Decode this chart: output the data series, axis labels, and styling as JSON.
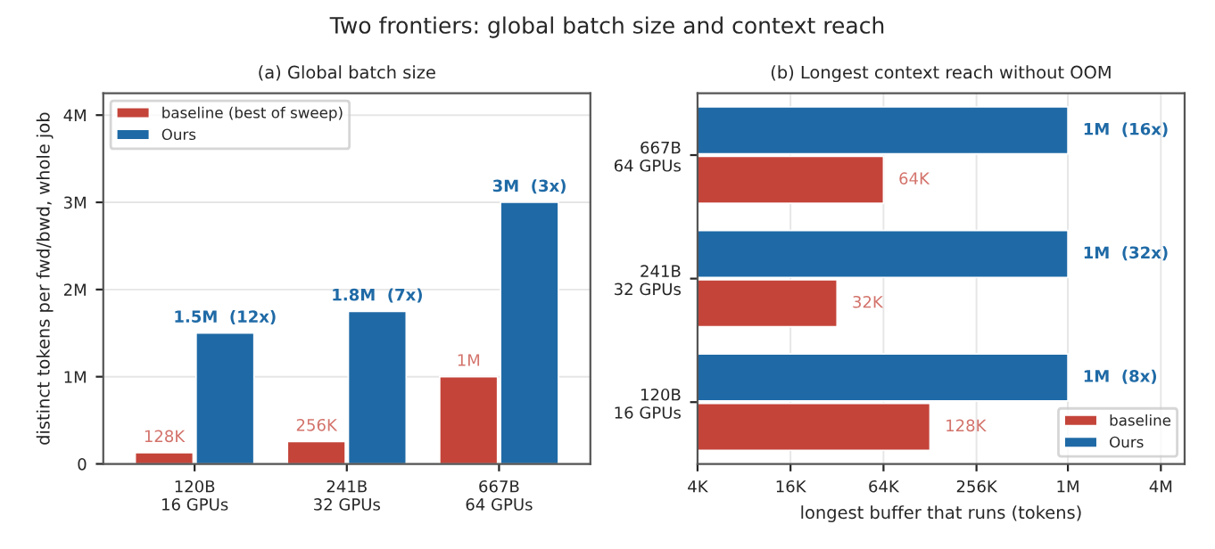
{
  "chart_data": [
    {
      "type": "bar",
      "title": "(a) Global batch size",
      "ylabel": "distinct tokens per fwd/bwd, whole job",
      "annotations": [
        "Two frontiers: global batch size and context reach"
      ],
      "categories": [
        "120B\n16 GPUs",
        "241B\n32 GPUs",
        "667B\n64 GPUs"
      ],
      "series": [
        {
          "name": "baseline (best of sweep)",
          "color": "#c4443a",
          "values": [
            128000,
            256000,
            1000000
          ],
          "value_labels": [
            "128K",
            "256K",
            "1M"
          ]
        },
        {
          "name": "Ours",
          "color": "#1f6aa6",
          "values": [
            1500000,
            1750000,
            3000000
          ],
          "value_labels": [
            "1.5M  (12x)",
            "1.8M  (7x)",
            "3M  (3x)"
          ]
        }
      ],
      "ylim": [
        0,
        4250000
      ],
      "yticks": [
        0,
        {
          "value": 1000000,
          "label": "1M"
        },
        {
          "value": 2000000,
          "label": "2M"
        },
        {
          "value": 3000000,
          "label": "3M"
        },
        {
          "value": 4000000,
          "label": "4M"
        }
      ],
      "grid": "y",
      "legend": "top left"
    },
    {
      "type": "bar",
      "orientation": "horizontal",
      "title": "(b) Longest context reach without OOM",
      "xlabel": "longest buffer that runs (tokens)",
      "categories": [
        "667B\n64 GPUs",
        "241B\n32 GPUs",
        "120B\n16 GPUs"
      ],
      "series": [
        {
          "name": "Ours",
          "color": "#1f6aa6",
          "values": [
            1000000,
            1000000,
            1000000
          ],
          "value_labels": [
            "1M  (16x)",
            "1M  (32x)",
            "1M  (8x)"
          ]
        },
        {
          "name": "baseline",
          "color": "#c4443a",
          "values": [
            64000,
            32000,
            128000
          ],
          "value_labels": [
            "64K",
            "32K",
            "128K"
          ]
        }
      ],
      "log": "x",
      "xlim": [
        4000,
        5700000
      ],
      "xticks": [
        {
          "value": 4000,
          "label": "4K"
        },
        {
          "value": 16000,
          "label": "16K"
        },
        {
          "value": 64000,
          "label": "64K"
        },
        {
          "value": 256000,
          "label": "256K"
        },
        {
          "value": 1000000,
          "label": "1M"
        },
        {
          "value": 4000000,
          "label": "4M"
        }
      ],
      "grid": "x",
      "legend": "bottom right"
    }
  ]
}
